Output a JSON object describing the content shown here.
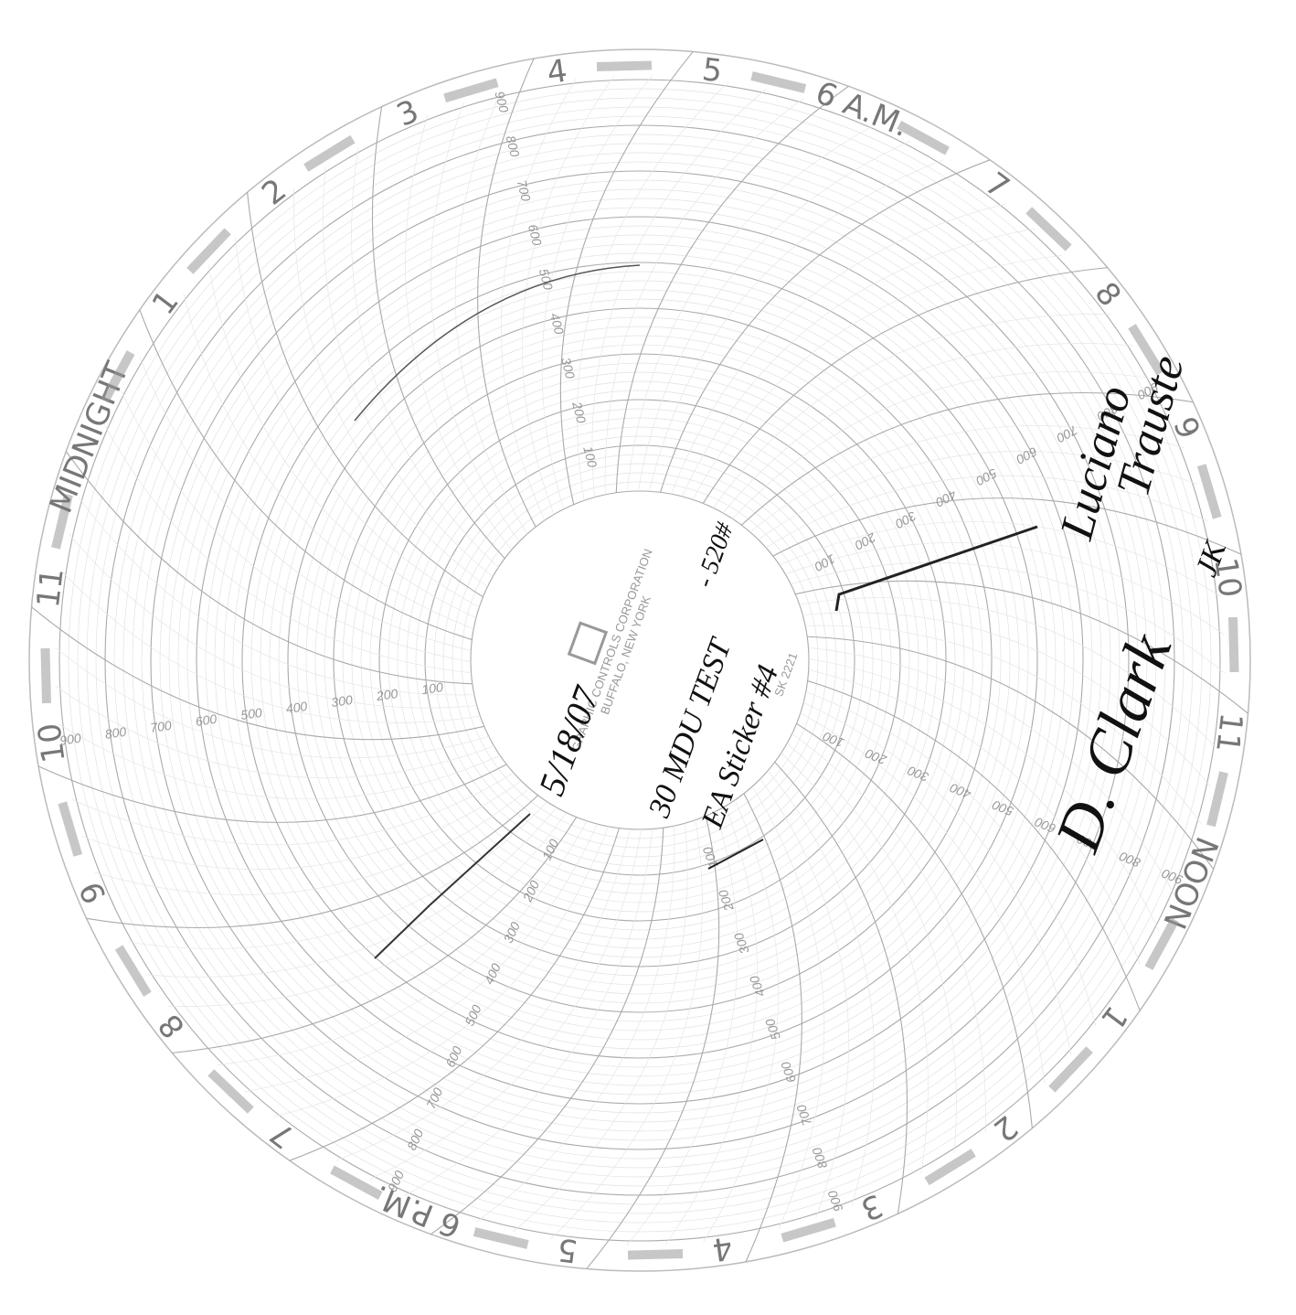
{
  "hour_labels": [
    "4",
    "5",
    "6 A.M.",
    "7",
    "8",
    "9",
    "10",
    "11",
    "NOON",
    "1",
    "2",
    "3",
    "4",
    "5",
    "6 P.M.",
    "7",
    "8",
    "9",
    "10",
    "11",
    "MIDNIGHT",
    "1",
    "2",
    "3"
  ],
  "scale_labels": [
    "100",
    "200",
    "300",
    "400",
    "500",
    "600",
    "700",
    "800",
    "900"
  ],
  "center": {
    "company": "GRAPHIC CONTROLS CORPORATION",
    "city": "BUFFALO, NEW YORK",
    "part": "SK 2221"
  },
  "handwriting": {
    "date": "5/18/07",
    "test": "30 MDU TEST",
    "pressure": "- 520#",
    "sticker": "EA Sticker #4",
    "signature_1a": "Luciano",
    "signature_1b": "Trauste",
    "signature_2": "D. Clark",
    "initials": "JK"
  }
}
